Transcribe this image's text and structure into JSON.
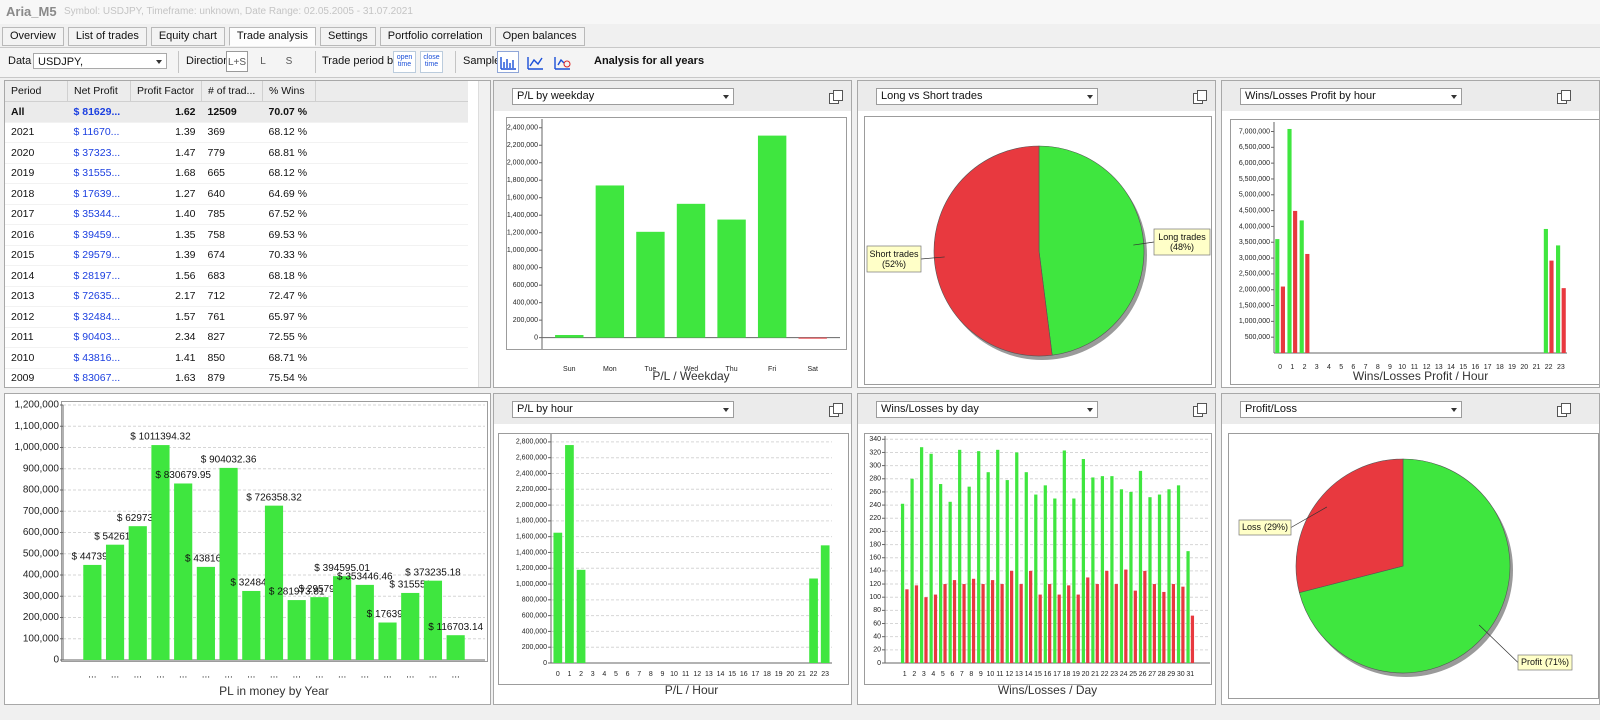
{
  "window": {
    "title": "Aria_M5",
    "subtitle": "Symbol: USDJPY, Timeframe: unknown, Date Range: 02.05.2005 - 31.07.2021"
  },
  "tabs": [
    "Overview",
    "List of trades",
    "Equity chart",
    "Trade analysis",
    "Settings",
    "Portfolio correlation",
    "Open balances"
  ],
  "toolbar": {
    "data_label": "Data",
    "symbol": "USDJPY,",
    "direction_label": "Direction",
    "directions": [
      "L+S",
      "L",
      "S"
    ],
    "period_label": "Trade period by",
    "period_options": [
      "open time",
      "close time"
    ],
    "sample_label": "Sample",
    "analysis_label": "Analysis for all years"
  },
  "table": {
    "columns": [
      "Period",
      "Net Profit",
      "Profit Factor",
      "# of trad...",
      "% Wins"
    ],
    "rows": [
      [
        "All",
        "$ 81629...",
        "1.62",
        "12509",
        "70.07 %"
      ],
      [
        "2021",
        "$ 11670...",
        "1.39",
        "369",
        "68.12 %"
      ],
      [
        "2020",
        "$ 37323...",
        "1.47",
        "779",
        "68.81 %"
      ],
      [
        "2019",
        "$ 31555...",
        "1.68",
        "665",
        "68.12 %"
      ],
      [
        "2018",
        "$ 17639...",
        "1.27",
        "640",
        "64.69 %"
      ],
      [
        "2017",
        "$ 35344...",
        "1.40",
        "785",
        "67.52 %"
      ],
      [
        "2016",
        "$ 39459...",
        "1.35",
        "758",
        "69.53 %"
      ],
      [
        "2015",
        "$ 29579...",
        "1.39",
        "674",
        "70.33 %"
      ],
      [
        "2014",
        "$ 28197...",
        "1.56",
        "683",
        "68.18 %"
      ],
      [
        "2013",
        "$ 72635...",
        "2.17",
        "712",
        "72.47 %"
      ],
      [
        "2012",
        "$ 32484...",
        "1.57",
        "761",
        "65.97 %"
      ],
      [
        "2011",
        "$ 90403...",
        "2.34",
        "827",
        "72.55 %"
      ],
      [
        "2010",
        "$ 43816...",
        "1.41",
        "850",
        "68.71 %"
      ],
      [
        "2009",
        "$ 83067...",
        "1.63",
        "879",
        "75.54 %"
      ]
    ]
  },
  "chart_data": [
    {
      "type": "bar",
      "title": "P/L by weekday",
      "xlabel": "P/L / Weekday",
      "categories": [
        "Sun",
        "Mon",
        "Tue",
        "Wed",
        "Thu",
        "Fri",
        "Sat"
      ],
      "values": [
        30000,
        1740000,
        1210000,
        1530000,
        1350000,
        2310000,
        -10000
      ],
      "color": "#3fe63f",
      "negative_color": "#e8393f",
      "grid": false,
      "ylim": [
        -130000,
        2500000
      ],
      "yticks": [
        0,
        {
          "value": 200000,
          "label": "200,000"
        },
        {
          "value": 400000,
          "label": "400,000"
        },
        {
          "value": 600000,
          "label": "600,000"
        },
        {
          "value": 800000,
          "label": "800,000"
        },
        {
          "value": 1000000,
          "label": "1,000,000"
        },
        {
          "value": 1200000,
          "label": "1,200,000"
        },
        {
          "value": 1400000,
          "label": "1,400,000"
        },
        {
          "value": 1600000,
          "label": "1,600,000"
        },
        {
          "value": 1800000,
          "label": "1,800,000"
        },
        {
          "value": 2000000,
          "label": "2,000,000"
        },
        {
          "value": 2200000,
          "label": "2,200,000"
        },
        {
          "value": 2400000,
          "label": "2,400,000"
        }
      ]
    },
    {
      "type": "pie",
      "title": "Long vs Short trades",
      "categories": [
        "Long trades",
        "Short trades"
      ],
      "values": [
        48,
        52
      ],
      "value_labels": [
        "(48%)",
        "(52%)"
      ],
      "colors": [
        "#3fe63f",
        "#e8393f"
      ]
    },
    {
      "type": "bar",
      "title": "Wins/Losses Profit by hour",
      "xlabel": "Wins/Losses Profit / Hour",
      "categories": [
        0,
        1,
        2,
        3,
        4,
        5,
        6,
        7,
        8,
        9,
        10,
        11,
        12,
        13,
        14,
        15,
        16,
        17,
        18,
        19,
        20,
        21,
        22,
        23
      ],
      "series": [
        {
          "color": "#3fe63f",
          "values": [
            3600000,
            7080000,
            4190000,
            0,
            0,
            0,
            0,
            0,
            0,
            0,
            0,
            0,
            0,
            0,
            0,
            0,
            0,
            0,
            0,
            0,
            0,
            0,
            3920000,
            3400000
          ]
        },
        {
          "color": "#e8393f",
          "values": [
            2100000,
            4490000,
            3130000,
            0,
            0,
            0,
            0,
            0,
            0,
            0,
            0,
            0,
            0,
            0,
            0,
            0,
            0,
            0,
            0,
            0,
            0,
            0,
            2920000,
            2050000
          ]
        }
      ],
      "grid": false,
      "ylim": [
        0,
        7300000
      ],
      "yticks": [
        {
          "value": 500000,
          "label": "500,000"
        },
        {
          "value": 1000000,
          "label": "1,000,000"
        },
        {
          "value": 1500000,
          "label": "1,500,000"
        },
        {
          "value": 2000000,
          "label": "2,000,000"
        },
        {
          "value": 2500000,
          "label": "2,500,000"
        },
        {
          "value": 3000000,
          "label": "3,000,000"
        },
        {
          "value": 3500000,
          "label": "3,500,000"
        },
        {
          "value": 4000000,
          "label": "4,000,000"
        },
        {
          "value": 4500000,
          "label": "4,500,000"
        },
        {
          "value": 5000000,
          "label": "5,000,000"
        },
        {
          "value": 5500000,
          "label": "5,500,000"
        },
        {
          "value": 6000000,
          "label": "6,000,000"
        },
        {
          "value": 6500000,
          "label": "6,500,000"
        },
        {
          "value": 7000000,
          "label": "7,000,000"
        }
      ]
    },
    {
      "type": "bar",
      "xlabel": "PL in money by Year",
      "categories": [
        "...",
        "...",
        "...",
        "...",
        "...",
        "...",
        "...",
        "...",
        "...",
        "...",
        "...",
        "...",
        "...",
        "...",
        "...",
        "...",
        "..."
      ],
      "values": [
        447396,
        542615,
        629733,
        1011394.32,
        830679.95,
        438165,
        904032.36,
        324847,
        726358.32,
        281973.81,
        295796,
        394595.01,
        353446.46,
        176398,
        315551,
        373235.18,
        116703.14
      ],
      "value_labels": [
        "$ 447396",
        "$ 542615",
        "$ 629733",
        "$ 1011394.32",
        "$ 830679.95",
        "$ 438165",
        "$ 904032.36",
        "$ 324847",
        "$ 726358.32",
        "$ 281973.81",
        "$ 295796",
        "$ 394595.01",
        "$ 353446.46",
        "$ 176398",
        "$ 315551",
        "$ 373235.18",
        "$ 116703.14"
      ],
      "color": "#3fe63f",
      "grid": true,
      "ylim": [
        0,
        1200000
      ],
      "yticks": [
        0,
        {
          "value": 100000,
          "label": "100,000"
        },
        {
          "value": 200000,
          "label": "200,000"
        },
        {
          "value": 300000,
          "label": "300,000"
        },
        {
          "value": 400000,
          "label": "400,000"
        },
        {
          "value": 500000,
          "label": "500,000"
        },
        {
          "value": 600000,
          "label": "600,000"
        },
        {
          "value": 700000,
          "label": "700,000"
        },
        {
          "value": 800000,
          "label": "800,000"
        },
        {
          "value": 900000,
          "label": "900,000"
        },
        {
          "value": 1000000,
          "label": "1,000,000"
        },
        {
          "value": 1100000,
          "label": "1,100,000"
        },
        {
          "value": 1200000,
          "label": "1,200,000"
        }
      ]
    },
    {
      "type": "bar",
      "title": "P/L by hour",
      "xlabel": "P/L / Hour",
      "categories": [
        0,
        1,
        2,
        3,
        4,
        5,
        6,
        7,
        8,
        9,
        10,
        11,
        12,
        13,
        14,
        15,
        16,
        17,
        18,
        19,
        20,
        21,
        22,
        23
      ],
      "values": [
        1650000,
        2760000,
        1180000,
        0,
        0,
        0,
        0,
        0,
        0,
        0,
        0,
        0,
        0,
        0,
        0,
        0,
        0,
        0,
        0,
        0,
        0,
        0,
        1070000,
        1490000
      ],
      "color": "#3fe63f",
      "grid": true,
      "ylim": [
        0,
        2900000
      ],
      "yticks": [
        0,
        {
          "value": 200000,
          "label": "200,000"
        },
        {
          "value": 400000,
          "label": "400,000"
        },
        {
          "value": 600000,
          "label": "600,000"
        },
        {
          "value": 800000,
          "label": "800,000"
        },
        {
          "value": 1000000,
          "label": "1,000,000"
        },
        {
          "value": 1200000,
          "label": "1,200,000"
        },
        {
          "value": 1400000,
          "label": "1,400,000"
        },
        {
          "value": 1600000,
          "label": "1,600,000"
        },
        {
          "value": 1800000,
          "label": "1,800,000"
        },
        {
          "value": 2000000,
          "label": "2,000,000"
        },
        {
          "value": 2200000,
          "label": "2,200,000"
        },
        {
          "value": 2400000,
          "label": "2,400,000"
        },
        {
          "value": 2600000,
          "label": "2,600,000"
        },
        {
          "value": 2800000,
          "label": "2,800,000"
        }
      ]
    },
    {
      "type": "bar",
      "title": "Wins/Losses by day",
      "xlabel": "Wins/Losses / Day",
      "categories": [
        1,
        2,
        3,
        4,
        5,
        6,
        7,
        8,
        9,
        10,
        11,
        12,
        13,
        14,
        15,
        16,
        17,
        18,
        19,
        20,
        21,
        22,
        23,
        24,
        25,
        26,
        27,
        28,
        29,
        30,
        31
      ],
      "series": [
        {
          "color": "#3fe63f",
          "values": [
            242,
            280,
            328,
            318,
            272,
            245,
            324,
            268,
            322,
            290,
            324,
            278,
            320,
            290,
            256,
            270,
            250,
            323,
            250,
            310,
            282,
            284,
            284,
            264,
            260,
            292,
            252,
            256,
            264,
            270,
            170
          ]
        },
        {
          "color": "#e8393f",
          "values": [
            112,
            118,
            100,
            104,
            120,
            126,
            120,
            128,
            120,
            126,
            120,
            140,
            120,
            140,
            104,
            120,
            104,
            118,
            104,
            130,
            120,
            140,
            120,
            142,
            110,
            140,
            120,
            108,
            120,
            116,
            72
          ]
        }
      ],
      "grid": true,
      "ylim": [
        0,
        345
      ],
      "yticks": [
        0,
        20,
        40,
        60,
        80,
        100,
        120,
        140,
        160,
        180,
        200,
        220,
        240,
        260,
        280,
        300,
        320,
        340
      ]
    },
    {
      "type": "pie",
      "title": "Profit/Loss",
      "categories": [
        "Profit",
        "Loss"
      ],
      "values": [
        71,
        29
      ],
      "value_labels": [
        "(71%)",
        "(29%)"
      ],
      "colors": [
        "#3fe63f",
        "#e8393f"
      ]
    }
  ]
}
